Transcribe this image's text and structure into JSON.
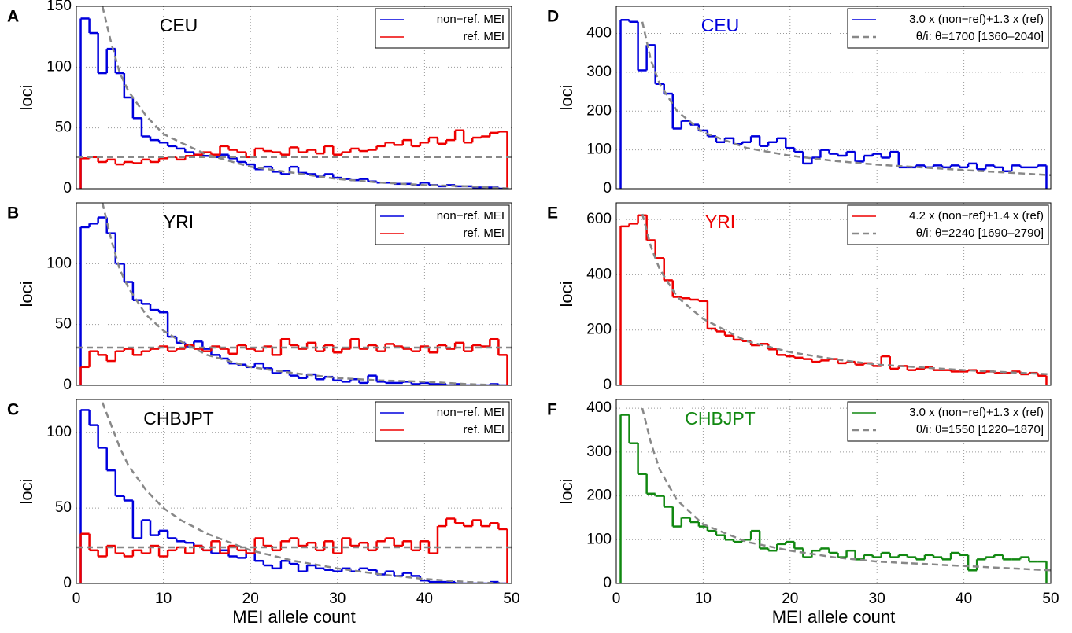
{
  "chart_data": [
    {
      "type": "step",
      "label": "A",
      "title": "CEU",
      "title_color": "#000000",
      "ylabel": "loci",
      "x": [
        1,
        2,
        3,
        4,
        5,
        6,
        7,
        8,
        9,
        10,
        11,
        12,
        13,
        14,
        15,
        16,
        17,
        18,
        19,
        20,
        21,
        22,
        23,
        24,
        25,
        26,
        27,
        28,
        29,
        30,
        31,
        32,
        33,
        34,
        35,
        36,
        37,
        38,
        39,
        40,
        41,
        42,
        43,
        44,
        45,
        46,
        47,
        48,
        49
      ],
      "xlim": [
        0,
        50
      ],
      "xticks": [
        0,
        10,
        20,
        30,
        40,
        50
      ],
      "ylim": [
        0,
        150
      ],
      "yticks": [
        0,
        50,
        100,
        150
      ],
      "grid": true,
      "legend": "upper right",
      "series": [
        {
          "name": "non−ref. MEI",
          "color": "#0000dd",
          "style": "step",
          "values": [
            140,
            128,
            95,
            115,
            95,
            75,
            58,
            43,
            40,
            38,
            35,
            33,
            30,
            28,
            27,
            26,
            28,
            25,
            22,
            20,
            16,
            18,
            14,
            12,
            18,
            13,
            12,
            10,
            12,
            9,
            8,
            7,
            8,
            6,
            5,
            5,
            4,
            4,
            3,
            5,
            3,
            2,
            3,
            2,
            2,
            1,
            1,
            1,
            0
          ]
        },
        {
          "name": "ref. MEI",
          "color": "#ee0000",
          "style": "step",
          "values": [
            25,
            26,
            22,
            24,
            20,
            22,
            21,
            24,
            22,
            25,
            26,
            24,
            27,
            28,
            30,
            28,
            35,
            32,
            30,
            26,
            33,
            31,
            30,
            28,
            34,
            30,
            32,
            29,
            35,
            28,
            30,
            33,
            31,
            32,
            35,
            38,
            36,
            40,
            35,
            38,
            42,
            37,
            40,
            48,
            38,
            42,
            43,
            46,
            47
          ]
        },
        {
          "color": "#888888",
          "style": "dashed",
          "x": [
            3,
            4,
            5,
            6,
            8,
            10,
            12,
            15,
            20,
            25,
            30,
            35,
            40,
            45,
            50
          ],
          "values": [
            150,
            120,
            95,
            80,
            60,
            45,
            38,
            28,
            18,
            13,
            8,
            5,
            3,
            2,
            0
          ]
        },
        {
          "color": "#888888",
          "style": "dashed",
          "x": [
            0,
            50
          ],
          "values": [
            26,
            26
          ]
        }
      ]
    },
    {
      "type": "step",
      "label": "B",
      "title": "YRI",
      "title_color": "#000000",
      "ylabel": "loci",
      "x": [
        1,
        2,
        3,
        4,
        5,
        6,
        7,
        8,
        9,
        10,
        11,
        12,
        13,
        14,
        15,
        16,
        17,
        18,
        19,
        20,
        21,
        22,
        23,
        24,
        25,
        26,
        27,
        28,
        29,
        30,
        31,
        32,
        33,
        34,
        35,
        36,
        37,
        38,
        39,
        40,
        41,
        42,
        43,
        44,
        45,
        46,
        47,
        48,
        49
      ],
      "xlim": [
        0,
        50
      ],
      "xticks": [
        0,
        10,
        20,
        30,
        40,
        50
      ],
      "ylim": [
        0,
        150
      ],
      "yticks": [
        0,
        50,
        100
      ],
      "grid": true,
      "legend": "upper right",
      "series": [
        {
          "name": "non−ref. MEI",
          "color": "#0000dd",
          "style": "step",
          "values": [
            130,
            133,
            138,
            125,
            100,
            85,
            70,
            67,
            62,
            60,
            40,
            35,
            32,
            36,
            30,
            25,
            22,
            18,
            17,
            15,
            18,
            14,
            10,
            12,
            8,
            6,
            9,
            5,
            7,
            4,
            3,
            5,
            2,
            8,
            3,
            2,
            2,
            3,
            1,
            2,
            1,
            1,
            0,
            1,
            0,
            0,
            0,
            1,
            0
          ]
        },
        {
          "name": "ref. MEI",
          "color": "#ee0000",
          "style": "step",
          "values": [
            15,
            28,
            25,
            20,
            28,
            30,
            25,
            28,
            30,
            32,
            28,
            30,
            33,
            30,
            28,
            32,
            30,
            26,
            33,
            30,
            28,
            32,
            25,
            38,
            33,
            30,
            35,
            28,
            33,
            27,
            30,
            38,
            30,
            33,
            28,
            34,
            32,
            30,
            28,
            32,
            27,
            33,
            30,
            35,
            28,
            33,
            32,
            38,
            25
          ]
        },
        {
          "color": "#888888",
          "style": "dashed",
          "x": [
            3,
            4,
            5,
            6,
            8,
            10,
            12,
            15,
            20,
            25,
            30,
            35,
            40,
            45,
            49
          ],
          "values": [
            150,
            120,
            95,
            80,
            58,
            45,
            36,
            25,
            15,
            10,
            6,
            4,
            3,
            1,
            0
          ]
        },
        {
          "color": "#888888",
          "style": "dashed",
          "x": [
            0,
            50
          ],
          "values": [
            31,
            31
          ]
        }
      ]
    },
    {
      "type": "step",
      "label": "C",
      "title": "CHBJPT",
      "title_color": "#000000",
      "ylabel": "loci",
      "xlabel": "MEI allele count",
      "x": [
        1,
        2,
        3,
        4,
        5,
        6,
        7,
        8,
        9,
        10,
        11,
        12,
        13,
        14,
        15,
        16,
        17,
        18,
        19,
        20,
        21,
        22,
        23,
        24,
        25,
        26,
        27,
        28,
        29,
        30,
        31,
        32,
        33,
        34,
        35,
        36,
        37,
        38,
        39,
        40,
        41,
        42,
        43,
        44,
        45,
        46,
        47,
        48,
        49
      ],
      "xlim": [
        0,
        50
      ],
      "xticks": [
        0,
        10,
        20,
        30,
        40,
        50
      ],
      "ylim": [
        0,
        122
      ],
      "yticks": [
        0,
        50,
        100
      ],
      "grid": true,
      "legend": "upper right",
      "series": [
        {
          "name": "non−ref. MEI",
          "color": "#0000dd",
          "style": "step",
          "values": [
            115,
            105,
            90,
            75,
            58,
            55,
            30,
            42,
            32,
            35,
            30,
            28,
            27,
            25,
            22,
            20,
            22,
            18,
            17,
            20,
            15,
            12,
            10,
            15,
            13,
            8,
            12,
            10,
            9,
            8,
            10,
            8,
            10,
            9,
            6,
            8,
            5,
            7,
            5,
            2,
            1,
            1,
            1,
            0,
            0,
            0,
            0,
            1,
            0
          ]
        },
        {
          "name": "ref. MEI",
          "color": "#ee0000",
          "style": "step",
          "values": [
            33,
            22,
            18,
            25,
            20,
            18,
            22,
            20,
            25,
            18,
            22,
            24,
            20,
            25,
            22,
            28,
            20,
            25,
            22,
            20,
            30,
            25,
            22,
            28,
            30,
            25,
            27,
            22,
            28,
            20,
            30,
            25,
            27,
            22,
            28,
            30,
            25,
            28,
            22,
            28,
            20,
            38,
            43,
            40,
            38,
            42,
            38,
            40,
            36
          ]
        },
        {
          "color": "#888888",
          "style": "dashed",
          "x": [
            3,
            4,
            5,
            6,
            8,
            10,
            12,
            15,
            20,
            25,
            30,
            35,
            40,
            45,
            49
          ],
          "values": [
            120,
            105,
            90,
            78,
            62,
            50,
            42,
            33,
            22,
            15,
            10,
            6,
            3,
            1,
            0
          ]
        },
        {
          "color": "#888888",
          "style": "dashed",
          "x": [
            0,
            50
          ],
          "values": [
            24,
            24
          ]
        }
      ]
    },
    {
      "type": "step",
      "label": "D",
      "title": "CEU",
      "title_color": "#0000dd",
      "ylabel": "loci",
      "x": [
        1,
        2,
        3,
        4,
        5,
        6,
        7,
        8,
        9,
        10,
        11,
        12,
        13,
        14,
        15,
        16,
        17,
        18,
        19,
        20,
        21,
        22,
        23,
        24,
        25,
        26,
        27,
        28,
        29,
        30,
        31,
        32,
        33,
        34,
        35,
        36,
        37,
        38,
        39,
        40,
        41,
        42,
        43,
        44,
        45,
        46,
        47,
        48,
        49
      ],
      "xlim": [
        0,
        50
      ],
      "xticks": [
        0,
        10,
        20,
        30,
        40,
        50
      ],
      "ylim": [
        0,
        470
      ],
      "yticks": [
        0,
        100,
        200,
        300,
        400
      ],
      "grid": true,
      "legend": "upper right",
      "series": [
        {
          "name": "3.0 x (non−ref)+1.3 x (ref)",
          "color": "#0000dd",
          "style": "step",
          "values": [
            435,
            430,
            305,
            370,
            270,
            245,
            155,
            175,
            165,
            150,
            135,
            120,
            130,
            115,
            120,
            135,
            110,
            120,
            130,
            105,
            95,
            65,
            80,
            100,
            90,
            85,
            95,
            70,
            85,
            90,
            80,
            95,
            55,
            55,
            60,
            55,
            60,
            55,
            60,
            55,
            65,
            50,
            60,
            55,
            45,
            60,
            55,
            55,
            60
          ]
        },
        {
          "name": "θ/i: θ=1700 [1360–2040]",
          "color": "#888888",
          "style": "dashed",
          "x": [
            3,
            4,
            5,
            7,
            10,
            15,
            20,
            25,
            30,
            40,
            50
          ],
          "values": [
            430,
            330,
            270,
            200,
            145,
            105,
            85,
            72,
            62,
            48,
            35
          ]
        }
      ]
    },
    {
      "type": "step",
      "label": "E",
      "title": "YRI",
      "title_color": "#ee0000",
      "ylabel": "loci",
      "x": [
        1,
        2,
        3,
        4,
        5,
        6,
        7,
        8,
        9,
        10,
        11,
        12,
        13,
        14,
        15,
        16,
        17,
        18,
        19,
        20,
        21,
        22,
        23,
        24,
        25,
        26,
        27,
        28,
        29,
        30,
        31,
        32,
        33,
        34,
        35,
        36,
        37,
        38,
        39,
        40,
        41,
        42,
        43,
        44,
        45,
        46,
        47,
        48,
        49
      ],
      "xlim": [
        0,
        50
      ],
      "xticks": [
        0,
        10,
        20,
        30,
        40,
        50
      ],
      "ylim": [
        0,
        660
      ],
      "yticks": [
        0,
        200,
        400,
        600
      ],
      "grid": true,
      "legend": "upper right",
      "series": [
        {
          "name": "4.2 x (non−ref)+1.4 x (ref)",
          "color": "#ee0000",
          "style": "step",
          "values": [
            575,
            585,
            615,
            525,
            460,
            380,
            320,
            315,
            310,
            305,
            205,
            195,
            180,
            165,
            160,
            145,
            150,
            130,
            110,
            105,
            100,
            95,
            85,
            90,
            95,
            80,
            85,
            75,
            80,
            70,
            105,
            60,
            70,
            55,
            60,
            65,
            55,
            55,
            50,
            50,
            55,
            45,
            50,
            45,
            45,
            50,
            40,
            45,
            35
          ]
        },
        {
          "name": "θ/i: θ=2240 [1690–2790]",
          "color": "#888888",
          "style": "dashed",
          "x": [
            3,
            4,
            5,
            7,
            10,
            15,
            20,
            25,
            30,
            40,
            50
          ],
          "values": [
            620,
            500,
            420,
            320,
            240,
            160,
            120,
            95,
            75,
            55,
            40
          ]
        }
      ]
    },
    {
      "type": "step",
      "label": "F",
      "title": "CHBJPT",
      "title_color": "#118811",
      "ylabel": "loci",
      "xlabel": "MEI allele count",
      "x": [
        1,
        2,
        3,
        4,
        5,
        6,
        7,
        8,
        9,
        10,
        11,
        12,
        13,
        14,
        15,
        16,
        17,
        18,
        19,
        20,
        21,
        22,
        23,
        24,
        25,
        26,
        27,
        28,
        29,
        30,
        31,
        32,
        33,
        34,
        35,
        36,
        37,
        38,
        39,
        40,
        41,
        42,
        43,
        44,
        45,
        46,
        47,
        48,
        49
      ],
      "xlim": [
        0,
        50
      ],
      "xticks": [
        0,
        10,
        20,
        30,
        40,
        50
      ],
      "ylim": [
        0,
        420
      ],
      "yticks": [
        0,
        100,
        200,
        300,
        400
      ],
      "grid": true,
      "legend": "upper right",
      "series": [
        {
          "name": "3.0 x (non−ref)+1.3 x (ref)",
          "color": "#118811",
          "style": "step",
          "values": [
            385,
            320,
            250,
            205,
            200,
            175,
            130,
            150,
            140,
            130,
            120,
            110,
            100,
            95,
            100,
            120,
            80,
            75,
            90,
            95,
            80,
            60,
            75,
            80,
            70,
            60,
            75,
            55,
            65,
            60,
            70,
            60,
            65,
            60,
            55,
            65,
            60,
            55,
            70,
            65,
            30,
            55,
            60,
            65,
            55,
            55,
            60,
            50,
            50
          ]
        },
        {
          "name": "θ/i: θ=1550 [1220–1870]",
          "color": "#888888",
          "style": "dashed",
          "x": [
            3,
            4,
            5,
            7,
            10,
            15,
            20,
            25,
            30,
            40,
            50
          ],
          "values": [
            400,
            320,
            260,
            190,
            135,
            95,
            75,
            60,
            50,
            40,
            30
          ]
        }
      ]
    }
  ]
}
